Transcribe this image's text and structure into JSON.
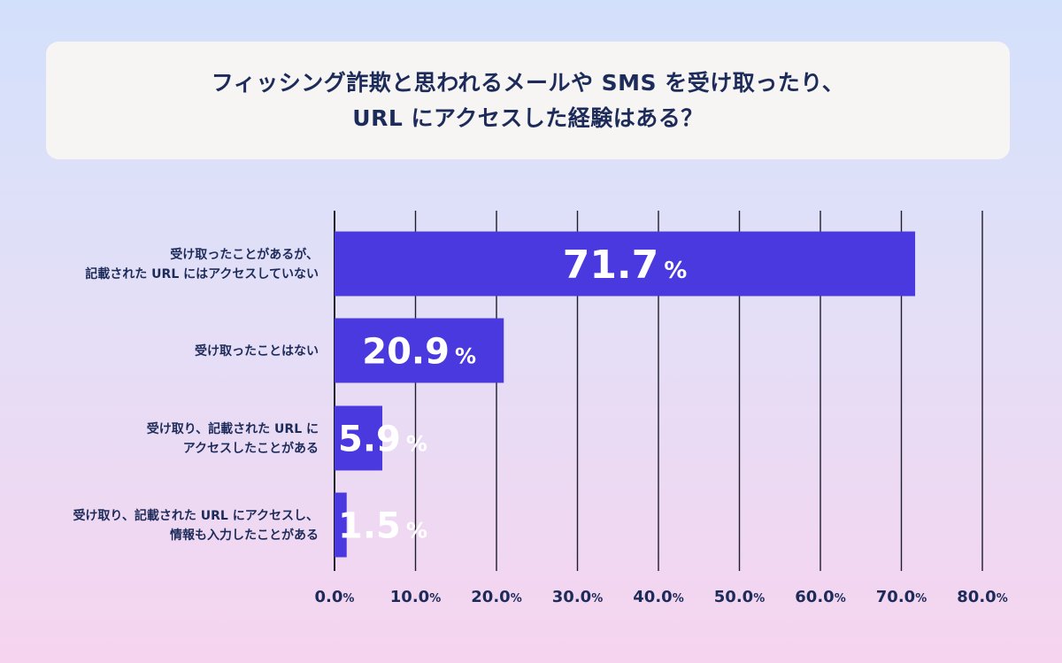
{
  "title": {
    "line1": "フィッシング詐欺と思われるメールや SMS を受け取ったり、",
    "line2": "URL にアクセスした経験はある？"
  },
  "colors": {
    "bar": "#4a39df",
    "gridline": "#1d1d2b",
    "text": "#1d2b5a",
    "value_text": "#ffffff"
  },
  "chart_data": {
    "type": "bar",
    "orientation": "horizontal",
    "categories": [
      [
        "受け取ったことがあるが、",
        "記載された URL にはアクセスしていない"
      ],
      [
        "受け取ったことはない"
      ],
      [
        "受け取り、記載された URL に",
        "アクセスしたことがある"
      ],
      [
        "受け取り、記載された URL にアクセスし、",
        "情報も入力したことがある"
      ]
    ],
    "values": [
      71.7,
      20.9,
      5.9,
      1.5
    ],
    "value_labels": [
      "71.7",
      "20.9",
      "5.9",
      "1.5"
    ],
    "unit": "%",
    "xlim": [
      0,
      80
    ],
    "ticks": [
      0,
      10,
      20,
      30,
      40,
      50,
      60,
      70,
      80
    ],
    "tick_labels": [
      "0.0",
      "10.0",
      "20.0",
      "30.0",
      "40.0",
      "50.0",
      "60.0",
      "70.0",
      "80.0"
    ],
    "grid": true,
    "legend": "none"
  }
}
